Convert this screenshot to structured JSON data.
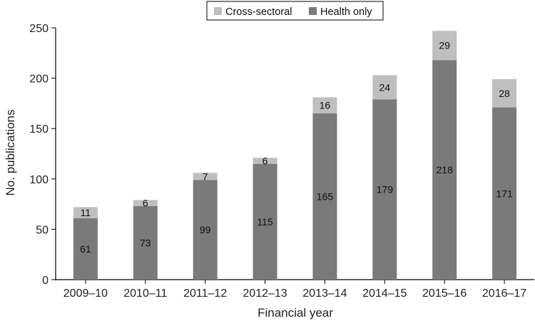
{
  "chart_data": {
    "type": "bar",
    "stacked": true,
    "categories": [
      "2009–10",
      "2010–11",
      "2011–12",
      "2012–13",
      "2013–14",
      "2014–15",
      "2015–16",
      "2016–17"
    ],
    "series": [
      {
        "name": "Health only",
        "values": [
          61,
          73,
          99,
          115,
          165,
          179,
          218,
          171
        ],
        "color": "#7a7a7a"
      },
      {
        "name": "Cross-sectoral",
        "values": [
          11,
          6,
          7,
          6,
          16,
          24,
          29,
          28
        ],
        "color": "#bfbfbf"
      }
    ],
    "title": "",
    "xlabel": "Financial year",
    "ylabel": "No. publications",
    "ylim": [
      0,
      250
    ],
    "yticks": [
      0,
      50,
      100,
      150,
      200,
      250
    ],
    "grid": false,
    "legend_position": "top-center"
  }
}
